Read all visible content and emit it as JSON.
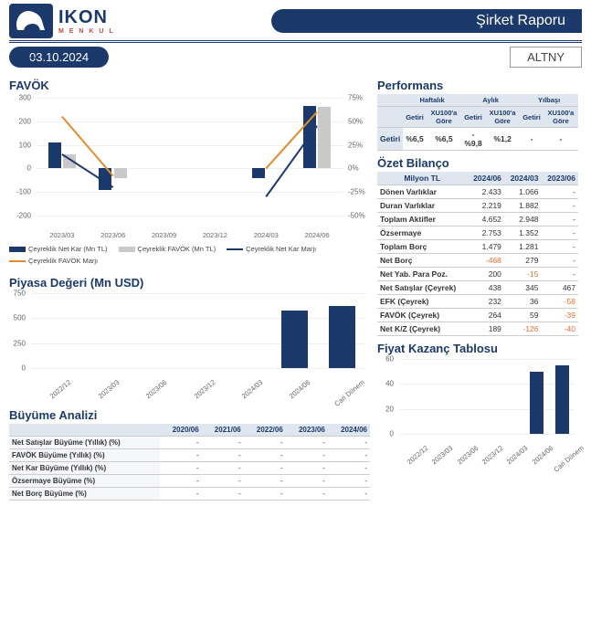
{
  "header": {
    "brand_name": "IKON",
    "brand_sub": "M E N K U L",
    "report_type": "Şirket Raporu",
    "report_date": "03.10.2024",
    "ticker": "ALTNY"
  },
  "colors": {
    "primary": "#1b3a6b",
    "secondary": "#c9c9c9",
    "accent": "#e08b2d",
    "negative": "#e07030"
  },
  "favok": {
    "title": "FAVÖK",
    "categories": [
      "2023/03",
      "2023/06",
      "2023/09",
      "2023/12",
      "2024/03",
      "2024/06"
    ],
    "y_left": {
      "min": -200,
      "max": 300,
      "step": 100
    },
    "y_right": {
      "min": -50,
      "max": 75,
      "step": 25,
      "suffix": "%"
    },
    "series": {
      "net_kar": {
        "label": "Çeyreklik Net Kar (Mn TL)",
        "type": "bar",
        "color": "#1b3a6b",
        "values": [
          110,
          -90,
          null,
          null,
          -40,
          265
        ]
      },
      "favok_bar": {
        "label": "Çeyreklik FAVÖK (Mn TL)",
        "type": "bar",
        "color": "#c9c9c9",
        "values": [
          60,
          -40,
          null,
          null,
          0,
          260
        ]
      },
      "net_kar_marj": {
        "label": "Çeyreklik Net Kar Marjı",
        "type": "line",
        "color": "#1b3a6b",
        "values": [
          15,
          -20,
          null,
          null,
          -30,
          45
        ]
      },
      "favok_marj": {
        "label": "Çeyreklik FAVÖK Marjı",
        "type": "line",
        "color": "#e08b2d",
        "values": [
          55,
          -8,
          null,
          null,
          0,
          60
        ]
      }
    }
  },
  "piyasa": {
    "title": "Piyasa Değeri (Mn USD)",
    "categories": [
      "2022/12",
      "2023/03",
      "2023/06",
      "2023/12",
      "2024/03",
      "2024/06",
      "Cari Dönem"
    ],
    "y": {
      "min": 0,
      "max": 750,
      "step": 250
    },
    "values": [
      null,
      null,
      null,
      null,
      null,
      580,
      620
    ],
    "color": "#1b3a6b"
  },
  "buyume": {
    "title": "Büyüme Analizi",
    "cols": [
      "",
      "2020/06",
      "2021/06",
      "2022/06",
      "2023/06",
      "2024/06"
    ],
    "rows": [
      [
        "Net Satışlar Büyüme (Yıllık) (%)",
        "-",
        "-",
        "-",
        "-",
        "-"
      ],
      [
        "FAVÖK Büyüme (Yıllık) (%)",
        "-",
        "-",
        "-",
        "-",
        "-"
      ],
      [
        "Net Kar Büyüme (Yıllık) (%)",
        "-",
        "-",
        "-",
        "-",
        "-"
      ],
      [
        "Özsermaye Büyüme (%)",
        "-",
        "-",
        "-",
        "-",
        "-"
      ],
      [
        "Net Borç Büyüme (%)",
        "-",
        "-",
        "-",
        "-",
        "-"
      ]
    ]
  },
  "perf": {
    "title": "Performans",
    "groups": [
      "Haftalık",
      "Aylık",
      "Yılbaşı"
    ],
    "sub": [
      "Getiri",
      "XU100'a Göre"
    ],
    "values": [
      "%6,5",
      "%6,5",
      "-%9,8",
      "%1,2",
      "-",
      "-"
    ]
  },
  "bilanco": {
    "title": "Özet Bilanço",
    "col_header": [
      "Milyon TL",
      "2024/06",
      "2024/03",
      "2023/06"
    ],
    "rows": [
      {
        "k": "Dönen Varlıklar",
        "v": [
          "2.433",
          "1.066",
          "-"
        ]
      },
      {
        "k": "Duran Varlıklar",
        "v": [
          "2.219",
          "1.882",
          "-"
        ]
      },
      {
        "k": "Toplam Aktifler",
        "v": [
          "4.652",
          "2.948",
          "-"
        ]
      },
      {
        "k": "Özsermaye",
        "v": [
          "2.753",
          "1.352",
          "-"
        ]
      },
      {
        "k": "Toplam Borç",
        "v": [
          "1.479",
          "1.281",
          "-"
        ]
      },
      {
        "k": "Net Borç",
        "v": [
          "-468",
          "279",
          "-"
        ],
        "neg": [
          0
        ]
      },
      {
        "k": "Net Yab. Para Poz.",
        "v": [
          "200",
          "-15",
          "-"
        ],
        "neg": [
          1
        ]
      },
      {
        "k": "Net Satışlar (Çeyrek)",
        "v": [
          "438",
          "345",
          "467"
        ]
      },
      {
        "k": "EFK (Çeyrek)",
        "v": [
          "232",
          "36",
          "-58"
        ],
        "neg": [
          2
        ]
      },
      {
        "k": "FAVÖK (Çeyrek)",
        "v": [
          "264",
          "59",
          "-39"
        ],
        "neg": [
          2
        ]
      },
      {
        "k": "Net K/Z (Çeyrek)",
        "v": [
          "189",
          "-126",
          "-40"
        ],
        "neg": [
          1,
          2
        ]
      }
    ]
  },
  "fiyat": {
    "title": "Fiyat Kazanç Tablosu",
    "categories": [
      "2022/12",
      "2023/03",
      "2023/06",
      "2023/12",
      "2024/03",
      "2024/06",
      "Cari Dönem"
    ],
    "y": {
      "min": 0,
      "max": 60,
      "step": 20
    },
    "values": [
      null,
      null,
      null,
      null,
      null,
      50,
      55
    ],
    "color": "#1b3a6b"
  }
}
